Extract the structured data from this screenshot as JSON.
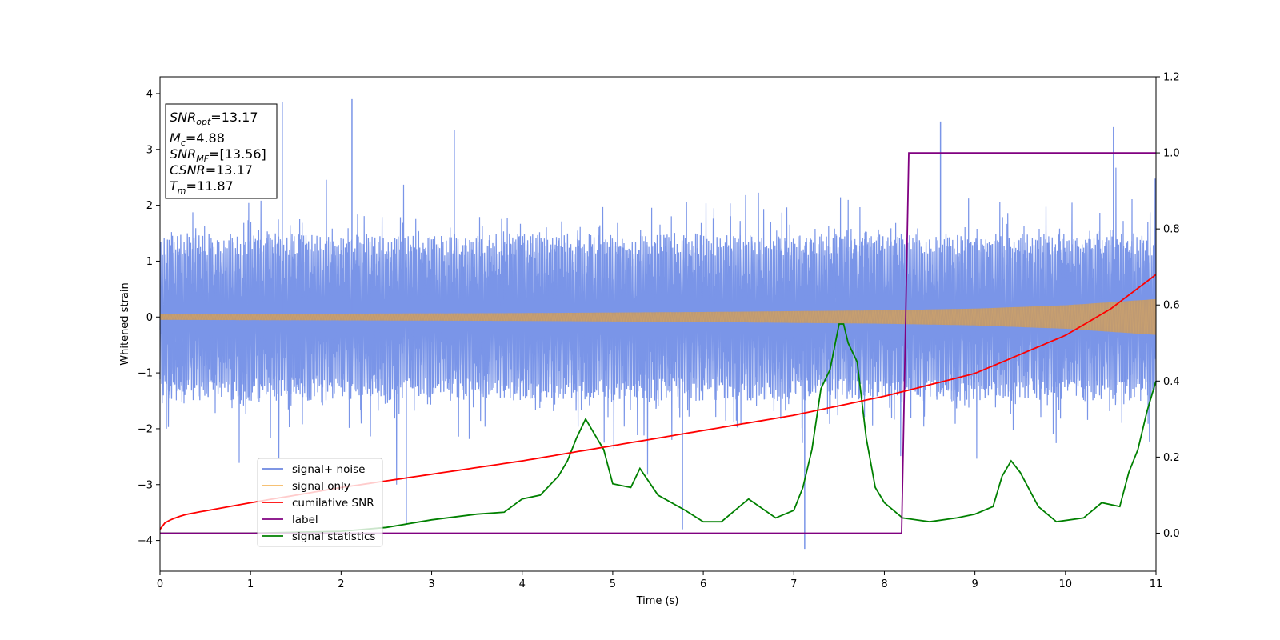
{
  "chart_data": {
    "type": "line",
    "xlabel": "Time (s)",
    "ylabel": "Whitened strain",
    "xlim": [
      0,
      11
    ],
    "ylim": [
      -4.55,
      4.3
    ],
    "y2lim": [
      -0.1,
      1.2
    ],
    "xticks": [
      "0",
      "1",
      "2",
      "3",
      "4",
      "5",
      "6",
      "7",
      "8",
      "9",
      "10",
      "11"
    ],
    "yticks": [
      "−4",
      "−3",
      "−2",
      "−1",
      "0",
      "1",
      "2",
      "3",
      "4"
    ],
    "y2ticks": [
      "0.0",
      "0.2",
      "0.4",
      "0.6",
      "0.8",
      "1.0",
      "1.2"
    ],
    "legend_position": "lower-left",
    "grid": false,
    "info_box": {
      "snr_opt": {
        "label": "SNR",
        "sub": "opt",
        "value": "=13.17"
      },
      "mc": {
        "label": "M",
        "sub": "c",
        "value": "=4.88"
      },
      "snr_mf": {
        "label": "SNR",
        "sub": "MF",
        "value": "=[13.56]"
      },
      "csnr": {
        "label": "CSNR",
        "sub": "",
        "value": "=13.17"
      },
      "tm": {
        "label": "T",
        "sub": "m",
        "value": "=11.87"
      }
    },
    "series": [
      {
        "name": "signal+ noise",
        "axis": "left",
        "color": "#7a95e8",
        "description_values": {
          "center": 0,
          "typical_band": [
            -1.5,
            1.5
          ],
          "spikes": [
            [
              1.35,
              3.85
            ],
            [
              2.12,
              3.9
            ],
            [
              3.25,
              3.35
            ],
            [
              7.12,
              -4.15
            ],
            [
              8.62,
              3.5
            ],
            [
              10.53,
              3.4
            ],
            [
              0.07,
              -2.0
            ],
            [
              2.72,
              -3.7
            ],
            [
              5.77,
              -3.8
            ]
          ]
        }
      },
      {
        "name": "signal only",
        "axis": "left",
        "color": "#f4b860",
        "amplitude_envelope": {
          "x": [
            0,
            2,
            4,
            6,
            8,
            9,
            10,
            11
          ],
          "y": [
            0.05,
            0.06,
            0.07,
            0.09,
            0.12,
            0.15,
            0.21,
            0.32
          ]
        }
      },
      {
        "name": "cumilative SNR",
        "axis": "right",
        "color": "#ff0000",
        "x": [
          0,
          0.3,
          1,
          2,
          3,
          4,
          5,
          6,
          7,
          8,
          9,
          10,
          10.5,
          11
        ],
        "y": [
          0.01,
          0.05,
          0.08,
          0.12,
          0.155,
          0.19,
          0.23,
          0.27,
          0.31,
          0.36,
          0.42,
          0.52,
          0.59,
          0.68
        ]
      },
      {
        "name": "label",
        "axis": "right",
        "color": "#800080",
        "x": [
          0,
          8.19,
          8.27,
          11
        ],
        "y": [
          0.0,
          0.0,
          1.0,
          1.0
        ]
      },
      {
        "name": "signal statistics",
        "axis": "right",
        "color": "#008000",
        "x": [
          0,
          1,
          2,
          2.5,
          3,
          3.5,
          3.8,
          4,
          4.2,
          4.4,
          4.5,
          4.6,
          4.7,
          4.8,
          4.9,
          5,
          5.2,
          5.3,
          5.5,
          5.8,
          6,
          6.2,
          6.4,
          6.5,
          6.8,
          7.0,
          7.1,
          7.2,
          7.3,
          7.4,
          7.5,
          7.55,
          7.6,
          7.7,
          7.8,
          7.9,
          8,
          8.2,
          8.5,
          8.8,
          9.0,
          9.2,
          9.3,
          9.4,
          9.5,
          9.7,
          9.9,
          10.2,
          10.4,
          10.6,
          10.7,
          10.8,
          10.9,
          11
        ],
        "y": [
          0.0,
          0.0,
          0.005,
          0.015,
          0.035,
          0.05,
          0.055,
          0.09,
          0.1,
          0.15,
          0.19,
          0.25,
          0.3,
          0.26,
          0.22,
          0.13,
          0.12,
          0.17,
          0.1,
          0.06,
          0.03,
          0.03,
          0.07,
          0.09,
          0.04,
          0.06,
          0.12,
          0.22,
          0.38,
          0.43,
          0.55,
          0.55,
          0.5,
          0.45,
          0.25,
          0.12,
          0.08,
          0.04,
          0.03,
          0.04,
          0.05,
          0.07,
          0.15,
          0.19,
          0.16,
          0.07,
          0.03,
          0.04,
          0.08,
          0.07,
          0.16,
          0.22,
          0.32,
          0.4
        ]
      }
    ]
  }
}
